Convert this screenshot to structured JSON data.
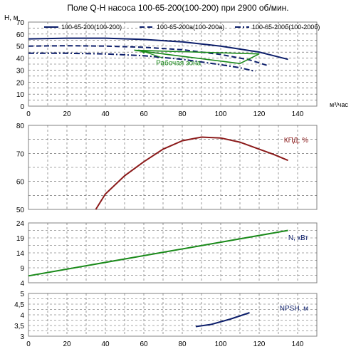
{
  "title": "Поле Q-H насоса 100-65-200(100-200) при 2900 об/мин.",
  "chart_data": [
    {
      "type": "line",
      "ylabel": "H, м",
      "xlabel": "м³/час",
      "xlim": [
        0,
        150
      ],
      "ylim": [
        0,
        70
      ],
      "xticks": [
        0,
        20,
        40,
        60,
        80,
        100,
        120,
        140
      ],
      "yticks": [
        0,
        10,
        20,
        30,
        40,
        50,
        60,
        70
      ],
      "legend_position": "top",
      "annotation": "Рабочая зона",
      "series": [
        {
          "name": "100-65-200(100-200)",
          "color": "#0d1f6b",
          "dash": "solid",
          "x": [
            0,
            20,
            40,
            60,
            80,
            100,
            120,
            135
          ],
          "y": [
            56,
            56.6,
            56.6,
            55.5,
            53.5,
            50,
            45,
            39
          ]
        },
        {
          "name": "100-65-200а(100-200а)",
          "color": "#0d1f6b",
          "dash": "dash",
          "x": [
            0,
            20,
            40,
            60,
            80,
            100,
            115,
            125
          ],
          "y": [
            50,
            50.3,
            50,
            49,
            47,
            43,
            38.5,
            33.5
          ]
        },
        {
          "name": "100-65-200б(100-200б)",
          "color": "#0d1f6b",
          "dash": "dashdot",
          "x": [
            0,
            20,
            40,
            60,
            80,
            100,
            110,
            118
          ],
          "y": [
            44,
            44,
            43.5,
            42,
            39,
            34.5,
            32,
            29
          ]
        },
        {
          "name": "",
          "color": "#1a8a1a",
          "dash": "solid",
          "role": "working-zone",
          "x": [
            55,
            110,
            120,
            55
          ],
          "y": [
            46.5,
            35.5,
            43.5,
            46.5
          ]
        }
      ]
    },
    {
      "type": "line",
      "label": "КПД, %",
      "xlim": [
        0,
        150
      ],
      "ylim": [
        50,
        80
      ],
      "yticks": [
        50,
        60,
        70,
        80
      ],
      "series": [
        {
          "name": "",
          "color": "#8b1a1a",
          "x": [
            35,
            40,
            50,
            60,
            70,
            80,
            90,
            100,
            110,
            120,
            128,
            135
          ],
          "y": [
            50,
            55.5,
            62,
            67,
            71.5,
            74.5,
            75.8,
            75.5,
            74,
            71.5,
            69.5,
            67.5
          ]
        }
      ]
    },
    {
      "type": "line",
      "label": "N, кВт",
      "xlim": [
        0,
        150
      ],
      "ylim": [
        4,
        24
      ],
      "yticks": [
        4,
        9,
        14,
        19,
        24
      ],
      "series": [
        {
          "name": "",
          "color": "#1a8a1a",
          "x": [
            0,
            135
          ],
          "y": [
            6.3,
            21.5
          ]
        }
      ]
    },
    {
      "type": "line",
      "label": "NPSH, м",
      "xlim": [
        0,
        150
      ],
      "ylim": [
        3,
        5
      ],
      "yticks": [
        3,
        3.5,
        4,
        4.5,
        5
      ],
      "ytick_labels": [
        "3",
        "3,5",
        "4",
        "4,5",
        "5"
      ],
      "xticks": [
        0,
        20,
        40,
        60,
        80,
        100,
        120,
        140
      ],
      "series": [
        {
          "name": "",
          "color": "#0d1f6b",
          "x": [
            87,
            95,
            105,
            115
          ],
          "y": [
            3.45,
            3.55,
            3.8,
            4.1
          ]
        }
      ]
    }
  ]
}
